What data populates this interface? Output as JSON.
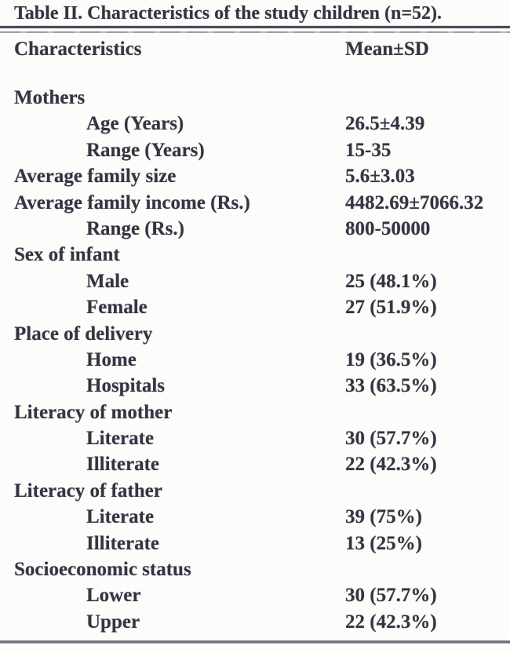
{
  "table": {
    "title": "Table II. Characteristics of the study children (n=52).",
    "columns": [
      "Characteristics",
      "Mean±SD"
    ],
    "rows": [
      {
        "label": "Mothers",
        "value": "",
        "indent": false
      },
      {
        "label": "Age (Years)",
        "value": "26.5±4.39",
        "indent": true
      },
      {
        "label": "Range (Years)",
        "value": "15-35",
        "indent": true
      },
      {
        "label": "Average family size",
        "value": "5.6±3.03",
        "indent": false
      },
      {
        "label": "Average family income (Rs.)",
        "value": "4482.69±7066.32",
        "indent": false
      },
      {
        "label": "Range (Rs.)",
        "value": "800-50000",
        "indent": true
      },
      {
        "label": "Sex of infant",
        "value": "",
        "indent": false
      },
      {
        "label": "Male",
        "value": "25 (48.1%)",
        "indent": true
      },
      {
        "label": "Female",
        "value": "27 (51.9%)",
        "indent": true
      },
      {
        "label": "Place of delivery",
        "value": "",
        "indent": false
      },
      {
        "label": "Home",
        "value": "19 (36.5%)",
        "indent": true
      },
      {
        "label": "Hospitals",
        "value": "33 (63.5%)",
        "indent": true
      },
      {
        "label": "Literacy of mother",
        "value": "",
        "indent": false
      },
      {
        "label": "Literate",
        "value": "30 (57.7%)",
        "indent": true
      },
      {
        "label": "Illiterate",
        "value": "22 (42.3%)",
        "indent": true
      },
      {
        "label": "Literacy of father",
        "value": "",
        "indent": false
      },
      {
        "label": "Literate",
        "value": "39 (75%)",
        "indent": true
      },
      {
        "label": "Illiterate",
        "value": "13 (25%)",
        "indent": true
      },
      {
        "label": "Socioeconomic status",
        "value": "",
        "indent": false
      },
      {
        "label": "Lower",
        "value": "30 (57.7%)",
        "indent": true
      },
      {
        "label": "Upper",
        "value": "22 (42.3%)",
        "indent": true
      }
    ],
    "sample_size": "n=52",
    "colors": {
      "background": "#fcfcfa",
      "text": "#343442",
      "rule_dark": "#4b4b58",
      "rule_light": "#9a9aa8"
    }
  }
}
